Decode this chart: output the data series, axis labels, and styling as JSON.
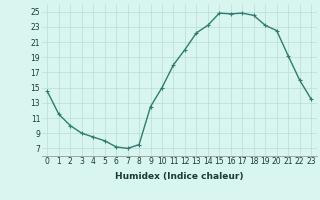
{
  "x": [
    0,
    1,
    2,
    3,
    4,
    5,
    6,
    7,
    8,
    9,
    10,
    11,
    12,
    13,
    14,
    15,
    16,
    17,
    18,
    19,
    20,
    21,
    22,
    23
  ],
  "y": [
    14.5,
    11.5,
    10.0,
    9.0,
    8.5,
    8.0,
    7.2,
    7.0,
    7.5,
    12.5,
    15.0,
    18.0,
    20.0,
    22.2,
    23.2,
    24.8,
    24.7,
    24.8,
    24.5,
    23.2,
    22.5,
    19.2,
    16.0,
    13.5
  ],
  "line_color": "#2e7d6e",
  "marker": "+",
  "marker_size": 3,
  "xlabel": "Humidex (Indice chaleur)",
  "xlim": [
    -0.5,
    23.5
  ],
  "ylim": [
    6,
    26
  ],
  "yticks": [
    7,
    9,
    11,
    13,
    15,
    17,
    19,
    21,
    23,
    25
  ],
  "xticks": [
    0,
    1,
    2,
    3,
    4,
    5,
    6,
    7,
    8,
    9,
    10,
    11,
    12,
    13,
    14,
    15,
    16,
    17,
    18,
    19,
    20,
    21,
    22,
    23
  ],
  "xtick_labels": [
    "0",
    "1",
    "2",
    "3",
    "4",
    "5",
    "6",
    "7",
    "8",
    "9",
    "10",
    "11",
    "12",
    "13",
    "14",
    "15",
    "16",
    "17",
    "18",
    "19",
    "20",
    "21",
    "22",
    "23"
  ],
  "bg_color": "#d8f5f0",
  "grid_color": "#b8ddd8",
  "line_width": 1.0,
  "tick_fontsize": 5.5,
  "xlabel_fontsize": 6.5
}
